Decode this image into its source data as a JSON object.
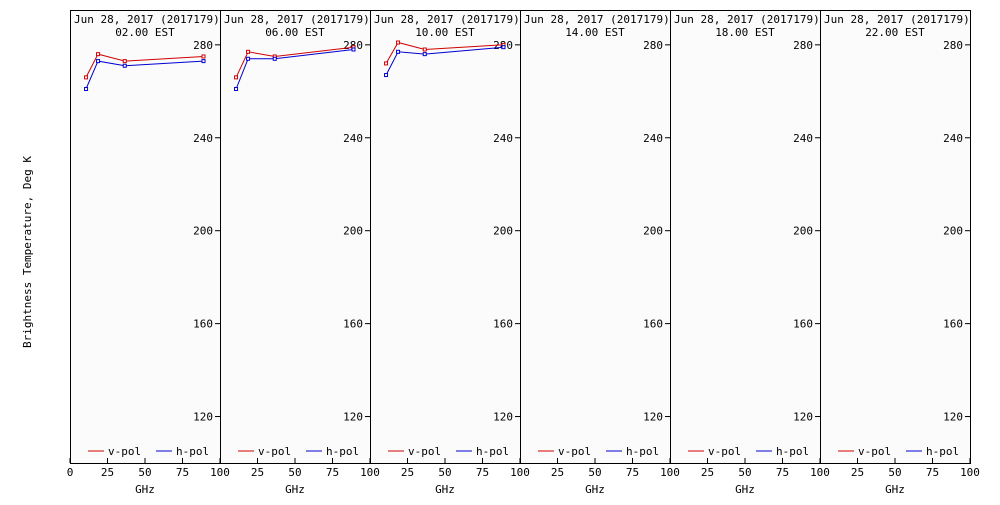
{
  "ylabel": "Brightness Temperature, Deg K",
  "xlabel": "GHz",
  "colors": {
    "v_pol": "#d00000",
    "h_pol": "#0000d0",
    "frame": "#000000",
    "background": "#fbfbfb"
  },
  "chart_data": [
    {
      "type": "line",
      "title_line1": "Jun 28, 2017 (2017179)",
      "title_line2": "02.00 EST",
      "xlabel": "GHz",
      "ylabel": "Brightness Temperature, Deg K",
      "xlim": [
        0,
        100
      ],
      "ylim": [
        100,
        295
      ],
      "xticks": [
        0,
        25,
        50,
        75,
        100
      ],
      "yticks": [
        120,
        160,
        200,
        240,
        280
      ],
      "legend": "bottom",
      "series": [
        {
          "name": "v-pol",
          "color": "#d00000",
          "x": [
            10.7,
            18.7,
            36.5,
            89.0
          ],
          "y": [
            266,
            276,
            273,
            275
          ]
        },
        {
          "name": "h-pol",
          "color": "#0000d0",
          "x": [
            10.7,
            18.7,
            36.5,
            89.0
          ],
          "y": [
            261,
            273,
            271,
            273
          ]
        }
      ]
    },
    {
      "type": "line",
      "title_line1": "Jun 28, 2017 (2017179)",
      "title_line2": "06.00 EST",
      "xlabel": "GHz",
      "xlim": [
        0,
        100
      ],
      "ylim": [
        100,
        295
      ],
      "xticks": [
        0,
        25,
        50,
        75,
        100
      ],
      "yticks": [
        120,
        160,
        200,
        240,
        280
      ],
      "legend": "bottom",
      "series": [
        {
          "name": "v-pol",
          "color": "#d00000",
          "x": [
            10.7,
            18.7,
            36.5,
            89.0
          ],
          "y": [
            266,
            277,
            275,
            279
          ]
        },
        {
          "name": "h-pol",
          "color": "#0000d0",
          "x": [
            10.7,
            18.7,
            36.5,
            89.0
          ],
          "y": [
            261,
            274,
            274,
            278
          ]
        }
      ]
    },
    {
      "type": "line",
      "title_line1": "Jun 28, 2017 (2017179)",
      "title_line2": "10.00 EST",
      "xlabel": "GHz",
      "xlim": [
        0,
        100
      ],
      "ylim": [
        100,
        295
      ],
      "xticks": [
        0,
        25,
        50,
        75,
        100
      ],
      "yticks": [
        120,
        160,
        200,
        240,
        280
      ],
      "legend": "bottom",
      "series": [
        {
          "name": "v-pol",
          "color": "#d00000",
          "x": [
            10.7,
            18.7,
            36.5,
            89.0
          ],
          "y": [
            272,
            281,
            278,
            280
          ]
        },
        {
          "name": "h-pol",
          "color": "#0000d0",
          "x": [
            10.7,
            18.7,
            36.5,
            89.0
          ],
          "y": [
            267,
            277,
            276,
            279
          ]
        }
      ]
    },
    {
      "type": "line",
      "title_line1": "Jun 28, 2017 (2017179)",
      "title_line2": "14.00 EST",
      "xlabel": "GHz",
      "xlim": [
        0,
        100
      ],
      "ylim": [
        100,
        295
      ],
      "xticks": [
        0,
        25,
        50,
        75,
        100
      ],
      "yticks": [
        120,
        160,
        200,
        240,
        280
      ],
      "legend": "bottom",
      "series": [
        {
          "name": "v-pol",
          "color": "#d00000",
          "x": [],
          "y": []
        },
        {
          "name": "h-pol",
          "color": "#0000d0",
          "x": [],
          "y": []
        }
      ]
    },
    {
      "type": "line",
      "title_line1": "Jun 28, 2017 (2017179)",
      "title_line2": "18.00 EST",
      "xlabel": "GHz",
      "xlim": [
        0,
        100
      ],
      "ylim": [
        100,
        295
      ],
      "xticks": [
        0,
        25,
        50,
        75,
        100
      ],
      "yticks": [
        120,
        160,
        200,
        240,
        280
      ],
      "legend": "bottom",
      "series": [
        {
          "name": "v-pol",
          "color": "#d00000",
          "x": [],
          "y": []
        },
        {
          "name": "h-pol",
          "color": "#0000d0",
          "x": [],
          "y": []
        }
      ]
    },
    {
      "type": "line",
      "title_line1": "Jun 28, 2017 (2017179)",
      "title_line2": "22.00 EST",
      "xlabel": "GHz",
      "xlim": [
        0,
        100
      ],
      "ylim": [
        100,
        295
      ],
      "xticks": [
        0,
        25,
        50,
        75,
        100
      ],
      "yticks": [
        120,
        160,
        200,
        240,
        280
      ],
      "legend": "bottom",
      "series": [
        {
          "name": "v-pol",
          "color": "#d00000",
          "x": [],
          "y": []
        },
        {
          "name": "h-pol",
          "color": "#0000d0",
          "x": [],
          "y": []
        }
      ]
    }
  ]
}
